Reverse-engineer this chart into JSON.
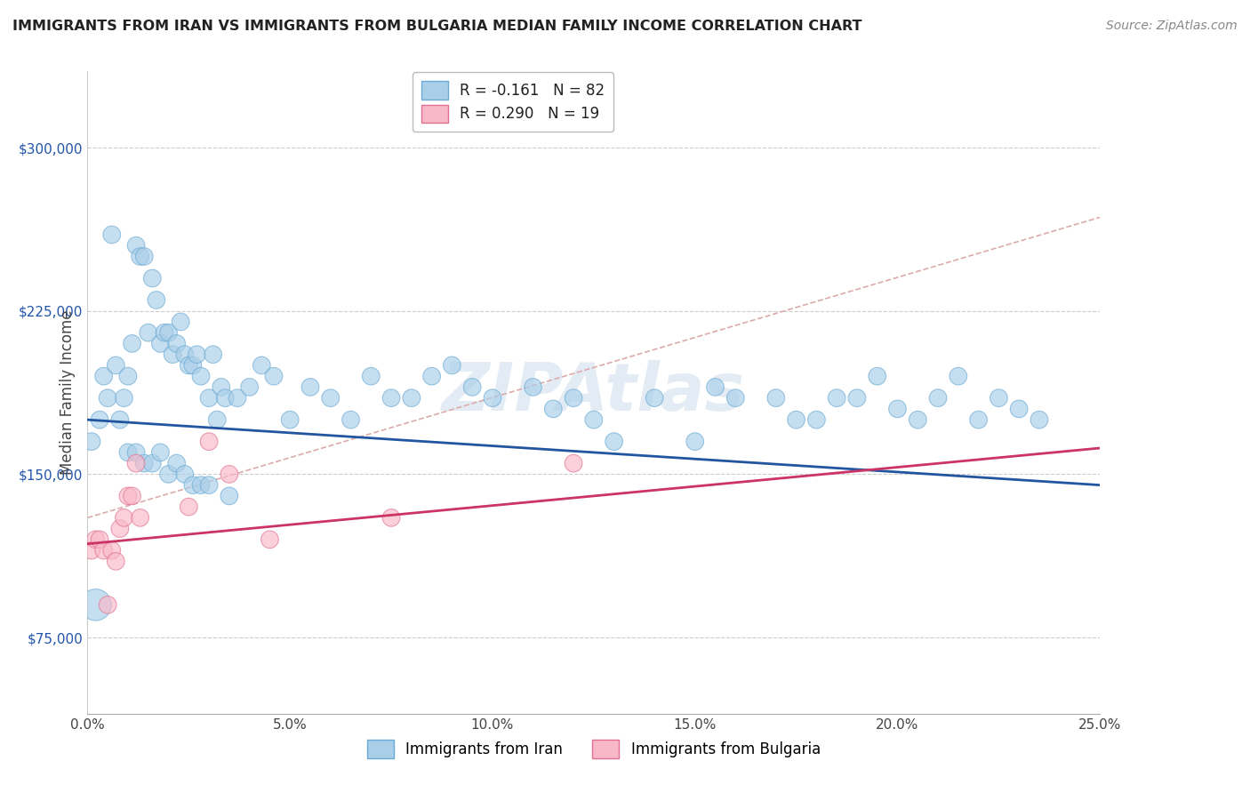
{
  "title": "IMMIGRANTS FROM IRAN VS IMMIGRANTS FROM BULGARIA MEDIAN FAMILY INCOME CORRELATION CHART",
  "source": "Source: ZipAtlas.com",
  "ylabel": "Median Family Income",
  "xlim": [
    0.0,
    0.25
  ],
  "ylim": [
    40000,
    335000
  ],
  "xtick_labels": [
    "0.0%",
    "5.0%",
    "10.0%",
    "15.0%",
    "20.0%",
    "25.0%"
  ],
  "xtick_vals": [
    0.0,
    0.05,
    0.1,
    0.15,
    0.2,
    0.25
  ],
  "ytick_vals": [
    75000,
    150000,
    225000,
    300000
  ],
  "ytick_labels": [
    "$75,000",
    "$150,000",
    "$225,000",
    "$300,000"
  ],
  "iran_color": "#A8CEE8",
  "iran_edge_color": "#6AAAD4",
  "bulgaria_color": "#F9B8C8",
  "bulgaria_edge_color": "#E07090",
  "iran_line_color": "#2255A0",
  "bulgaria_line_color": "#CC3366",
  "refline_color": "#DDAAAA",
  "watermark": "ZIPAtlas",
  "legend_label_iran": "R = -0.161   N = 82",
  "legend_label_bulgaria": "R = 0.290   N = 19",
  "iran_line_y0": 175000,
  "iran_line_y1": 145000,
  "bulgaria_line_y0": 118000,
  "bulgaria_line_y1": 162000,
  "refline_y0": 130000,
  "refline_y1": 268000,
  "iran_x": [
    0.001,
    0.002,
    0.003,
    0.004,
    0.005,
    0.006,
    0.007,
    0.008,
    0.009,
    0.01,
    0.011,
    0.012,
    0.013,
    0.014,
    0.015,
    0.016,
    0.017,
    0.018,
    0.019,
    0.02,
    0.021,
    0.022,
    0.023,
    0.024,
    0.025,
    0.026,
    0.027,
    0.028,
    0.03,
    0.031,
    0.032,
    0.033,
    0.034,
    0.035,
    0.037,
    0.04,
    0.043,
    0.046,
    0.05,
    0.055,
    0.06,
    0.065,
    0.07,
    0.075,
    0.08,
    0.085,
    0.09,
    0.095,
    0.1,
    0.11,
    0.115,
    0.12,
    0.125,
    0.13,
    0.14,
    0.15,
    0.155,
    0.16,
    0.17,
    0.175,
    0.18,
    0.185,
    0.19,
    0.195,
    0.2,
    0.205,
    0.21,
    0.215,
    0.22,
    0.225,
    0.23,
    0.235,
    0.01,
    0.012,
    0.014,
    0.016,
    0.018,
    0.02,
    0.022,
    0.024,
    0.026,
    0.028,
    0.03
  ],
  "iran_y": [
    165000,
    90000,
    175000,
    195000,
    185000,
    260000,
    200000,
    175000,
    185000,
    195000,
    210000,
    255000,
    250000,
    250000,
    215000,
    240000,
    230000,
    210000,
    215000,
    215000,
    205000,
    210000,
    220000,
    205000,
    200000,
    200000,
    205000,
    195000,
    185000,
    205000,
    175000,
    190000,
    185000,
    140000,
    185000,
    190000,
    200000,
    195000,
    175000,
    190000,
    185000,
    175000,
    195000,
    185000,
    185000,
    195000,
    200000,
    190000,
    185000,
    190000,
    180000,
    185000,
    175000,
    165000,
    185000,
    165000,
    190000,
    185000,
    185000,
    175000,
    175000,
    185000,
    185000,
    195000,
    180000,
    175000,
    185000,
    195000,
    175000,
    185000,
    180000,
    175000,
    160000,
    160000,
    155000,
    155000,
    160000,
    150000,
    155000,
    150000,
    145000,
    145000,
    145000
  ],
  "iran_sizes": [
    200,
    650,
    200,
    200,
    200,
    200,
    200,
    200,
    200,
    200,
    200,
    200,
    200,
    200,
    200,
    200,
    200,
    200,
    200,
    200,
    200,
    200,
    200,
    200,
    200,
    200,
    200,
    200,
    200,
    200,
    200,
    200,
    200,
    200,
    200,
    200,
    200,
    200,
    200,
    200,
    200,
    200,
    200,
    200,
    200,
    200,
    200,
    200,
    200,
    200,
    200,
    200,
    200,
    200,
    200,
    200,
    200,
    200,
    200,
    200,
    200,
    200,
    200,
    200,
    200,
    200,
    200,
    200,
    200,
    200,
    200,
    200,
    200,
    200,
    200,
    200,
    200,
    200,
    200,
    200,
    200,
    200,
    200
  ],
  "bulgaria_x": [
    0.001,
    0.002,
    0.003,
    0.004,
    0.005,
    0.006,
    0.007,
    0.008,
    0.009,
    0.01,
    0.011,
    0.012,
    0.013,
    0.025,
    0.03,
    0.035,
    0.045,
    0.075,
    0.12
  ],
  "bulgaria_y": [
    115000,
    120000,
    120000,
    115000,
    90000,
    115000,
    110000,
    125000,
    130000,
    140000,
    140000,
    155000,
    130000,
    135000,
    165000,
    150000,
    120000,
    130000,
    155000
  ],
  "bulgaria_sizes": [
    200,
    200,
    200,
    200,
    200,
    200,
    200,
    200,
    200,
    200,
    200,
    200,
    200,
    200,
    200,
    200,
    200,
    200,
    200
  ]
}
